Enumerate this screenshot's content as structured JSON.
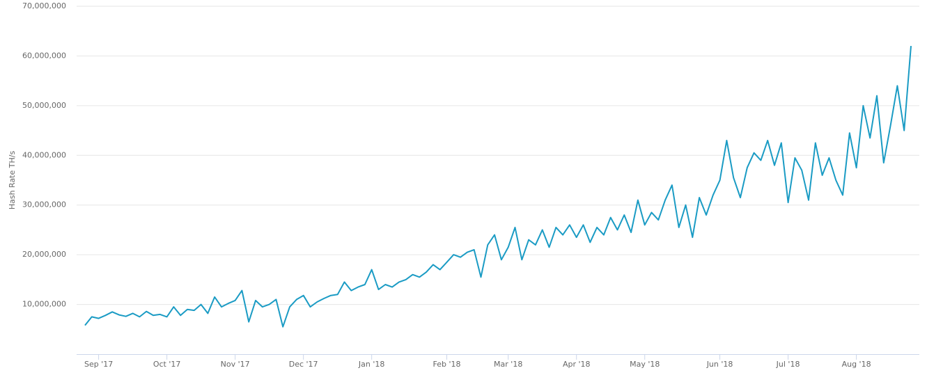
{
  "chart_data": {
    "type": "line",
    "y_label": "Hash Rate TH/s",
    "categories": [
      null,
      null,
      "Sep '17",
      null,
      null,
      null,
      null,
      null,
      null,
      null,
      null,
      null,
      "Oct '17",
      null,
      null,
      null,
      null,
      null,
      null,
      null,
      null,
      null,
      "Nov '17",
      null,
      null,
      null,
      null,
      null,
      null,
      null,
      null,
      null,
      "Dec '17",
      null,
      null,
      null,
      null,
      null,
      null,
      null,
      null,
      null,
      "Jan '18",
      null,
      null,
      null,
      null,
      null,
      null,
      null,
      null,
      null,
      null,
      "Feb '18",
      null,
      null,
      null,
      null,
      null,
      null,
      null,
      null,
      "Mar '18",
      null,
      null,
      null,
      null,
      null,
      null,
      null,
      null,
      null,
      "Apr '18",
      null,
      null,
      null,
      null,
      null,
      null,
      null,
      null,
      null,
      "May '18",
      null,
      null,
      null,
      null,
      null,
      null,
      null,
      null,
      null,
      null,
      "Jun '18",
      null,
      null,
      null,
      null,
      null,
      null,
      null,
      null,
      null,
      "Jul '18",
      null,
      null,
      null,
      null,
      null,
      null,
      null,
      null,
      null,
      "Aug '18",
      null,
      null,
      null,
      null,
      null,
      null,
      null,
      null
    ],
    "series": [
      {
        "name": "Hash Rate",
        "color": "#1a9bc4",
        "values": [
          5800000,
          7500000,
          7200000,
          7800000,
          8500000,
          7900000,
          7600000,
          8200000,
          7500000,
          8600000,
          7800000,
          8000000,
          7500000,
          9500000,
          7800000,
          9000000,
          8800000,
          10000000,
          8200000,
          11500000,
          9500000,
          10200000,
          10800000,
          12800000,
          6500000,
          10800000,
          9500000,
          10000000,
          11000000,
          5500000,
          9500000,
          11000000,
          11800000,
          9500000,
          10500000,
          11200000,
          11800000,
          12000000,
          14500000,
          12800000,
          13500000,
          14000000,
          17000000,
          13000000,
          14000000,
          13500000,
          14500000,
          15000000,
          16000000,
          15500000,
          16500000,
          18000000,
          17000000,
          18500000,
          20000000,
          19500000,
          20500000,
          21000000,
          15500000,
          22000000,
          24000000,
          19000000,
          21500000,
          25500000,
          19000000,
          23000000,
          22000000,
          25000000,
          21500000,
          25500000,
          24000000,
          26000000,
          23500000,
          26000000,
          22500000,
          25500000,
          24000000,
          27500000,
          25000000,
          28000000,
          24500000,
          31000000,
          26000000,
          28500000,
          27000000,
          31000000,
          34000000,
          25500000,
          30000000,
          23500000,
          31500000,
          28000000,
          32000000,
          35000000,
          43000000,
          35500000,
          31500000,
          37500000,
          40500000,
          39000000,
          43000000,
          38000000,
          42500000,
          30500000,
          39500000,
          37000000,
          31000000,
          42500000,
          36000000,
          39500000,
          35000000,
          32000000,
          44500000,
          37500000,
          50000000,
          43500000,
          52000000,
          38500000,
          46000000,
          54000000,
          45000000,
          62000000
        ]
      }
    ],
    "ylim": [
      0,
      70000000
    ],
    "yticks": [
      {
        "value": 10000000,
        "label": "10,000,000"
      },
      {
        "value": 20000000,
        "label": "20,000,000"
      },
      {
        "value": 30000000,
        "label": "30,000,000"
      },
      {
        "value": 40000000,
        "label": "40,000,000"
      },
      {
        "value": 50000000,
        "label": "50,000,000"
      },
      {
        "value": 60000000,
        "label": "60,000,000"
      },
      {
        "value": 70000000,
        "label": "70,000,000"
      }
    ],
    "grid": true
  }
}
